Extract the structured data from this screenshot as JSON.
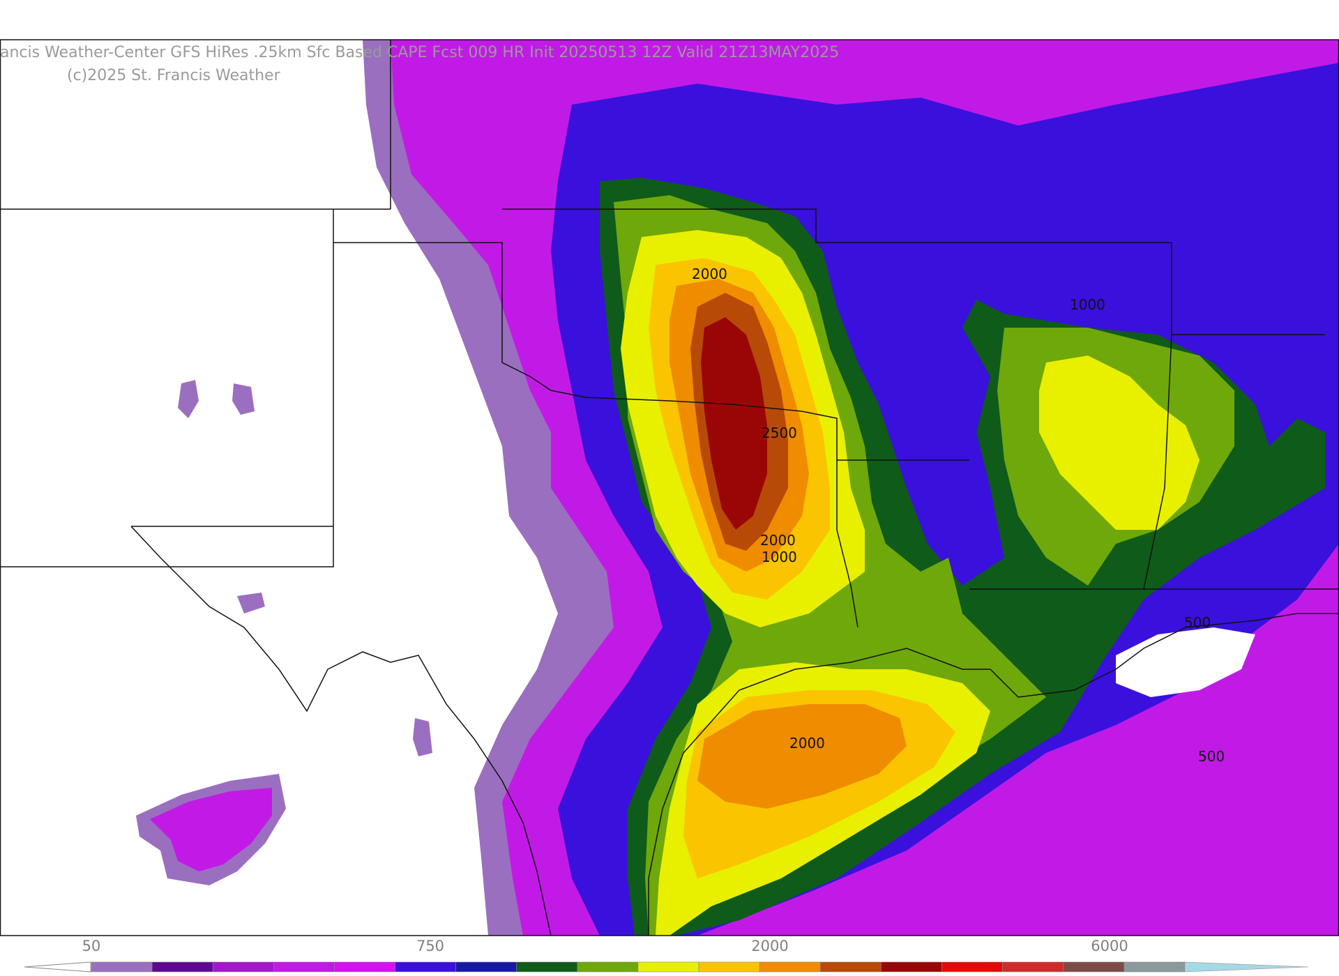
{
  "header": {
    "title": "ancis Weather-Center GFS HiRes .25km Sfc Based CAPE  Fcst 009 HR Init 20250513 12Z  Valid 21Z13MAY2025",
    "copyright": "(c)2025 St. Francis Weather"
  },
  "colorbar": {
    "colors": [
      "#9b6fbf",
      "#5e0891",
      "#a316cc",
      "#c21ae6",
      "#d60ff0",
      "#3a10dd",
      "#1818a8",
      "#0f5b1a",
      "#6ea80b",
      "#e8f000",
      "#fbc400",
      "#ef8c00",
      "#b84a08",
      "#9a0606",
      "#e60808",
      "#d02a2a",
      "#7d4a4a",
      "#8a9a9a",
      "#a6d8e6"
    ],
    "tick_labels": [
      "50",
      "750",
      "2000",
      "6000"
    ]
  },
  "contour_labels": {
    "north_2000": "2000",
    "center_2500": "2500",
    "south_2000": "2000",
    "south_1000": "1000",
    "ms_1000": "1000",
    "gulf_2000": "2000",
    "fl_500": "500",
    "gulf_500": "500"
  },
  "field_colors": {
    "lavender": "#9b6fbf",
    "magenta": "#c21ae6",
    "blue": "#3a10dd",
    "navy": "#1818a8",
    "dark_green": "#0f5b1a",
    "green": "#6ea80b",
    "yellow": "#e8f000",
    "gold": "#fbc400",
    "orange": "#ef8c00",
    "rust": "#b84a08",
    "dark_red": "#9a0606"
  }
}
